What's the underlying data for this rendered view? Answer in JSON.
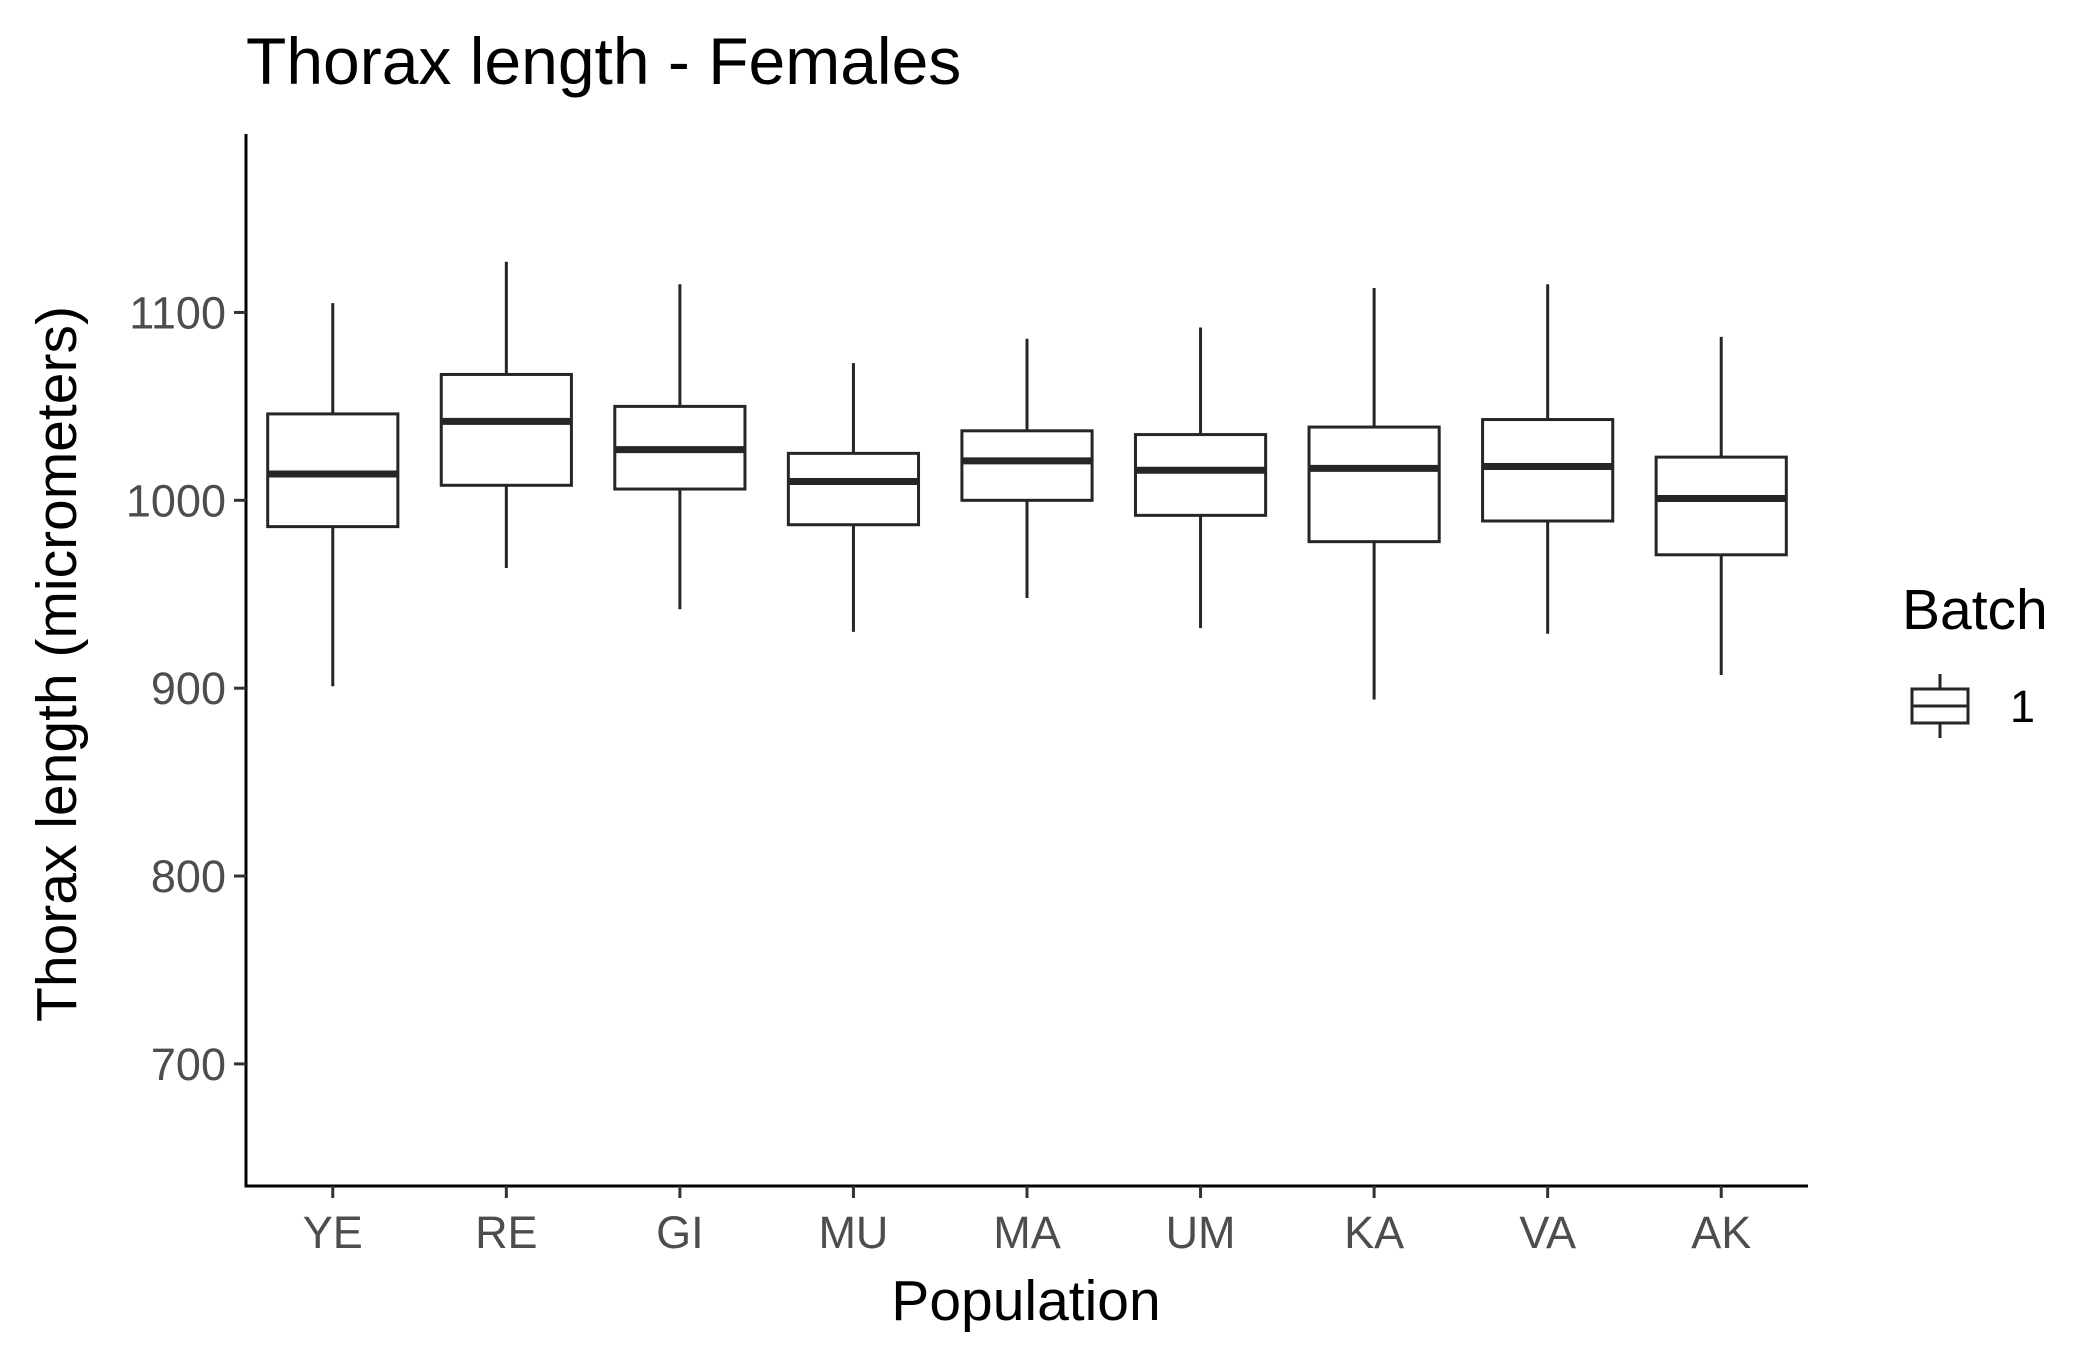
{
  "chart_data": {
    "type": "box",
    "title": "Thorax length - Females",
    "xlabel": "Population",
    "ylabel": "Thorax length (micrometers)",
    "categories": [
      "YE",
      "RE",
      "GI",
      "MU",
      "MA",
      "UM",
      "KA",
      "VA",
      "AK"
    ],
    "ylim": [
      635,
      1195
    ],
    "yticks": [
      700,
      800,
      900,
      1000,
      1100
    ],
    "grid": false,
    "series": [
      {
        "name": "1",
        "boxes": [
          {
            "category": "YE",
            "min": 901,
            "q1": 986,
            "median": 1014,
            "q3": 1046,
            "max": 1105
          },
          {
            "category": "RE",
            "min": 964,
            "q1": 1008,
            "median": 1042,
            "q3": 1067,
            "max": 1127
          },
          {
            "category": "GI",
            "min": 942,
            "q1": 1006,
            "median": 1027,
            "q3": 1050,
            "max": 1115
          },
          {
            "category": "MU",
            "min": 930,
            "q1": 987,
            "median": 1010,
            "q3": 1025,
            "max": 1073
          },
          {
            "category": "MA",
            "min": 948,
            "q1": 1000,
            "median": 1021,
            "q3": 1037,
            "max": 1086
          },
          {
            "category": "UM",
            "min": 932,
            "q1": 992,
            "median": 1016,
            "q3": 1035,
            "max": 1092
          },
          {
            "category": "KA",
            "min": 894,
            "q1": 978,
            "median": 1017,
            "q3": 1039,
            "max": 1113
          },
          {
            "category": "VA",
            "min": 929,
            "q1": 989,
            "median": 1018,
            "q3": 1043,
            "max": 1115
          },
          {
            "category": "AK",
            "min": 907,
            "q1": 971,
            "median": 1001,
            "q3": 1023,
            "max": 1087
          }
        ]
      }
    ],
    "legend": {
      "title": "Batch",
      "position": "right",
      "entries": [
        "1"
      ]
    },
    "colors": {
      "box_fill": "#ffffff",
      "box_stroke": "#262626",
      "axis": "#000000",
      "tick_text": "#4d4d4d"
    }
  }
}
